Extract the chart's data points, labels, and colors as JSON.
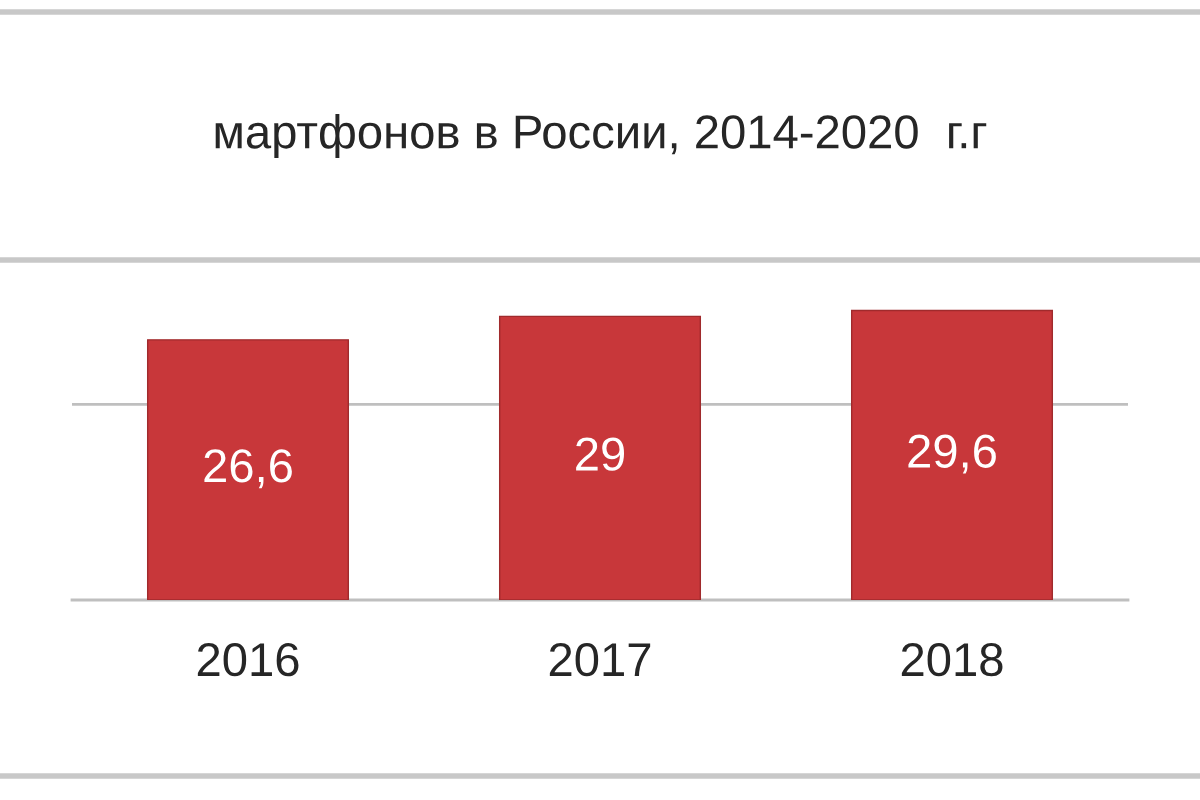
{
  "chart_data": {
    "type": "bar",
    "title": "мартфонов в России, 2014-2020  г.г",
    "categories": [
      "2016",
      "2017",
      "2018"
    ],
    "values": [
      26.6,
      29,
      29.6
    ],
    "value_labels": [
      "26,6",
      "29",
      "29,6"
    ],
    "color": "#c8373a",
    "ref_lines": [
      {
        "axis": "y",
        "value": 20,
        "color": "#bfbfbf"
      }
    ],
    "tick_labels": "x"
  }
}
